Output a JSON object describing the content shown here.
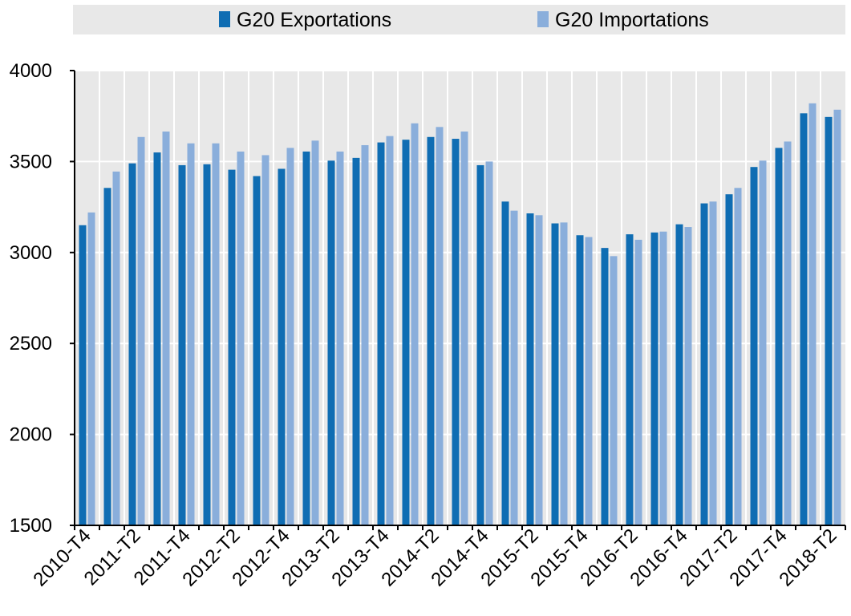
{
  "chart_data": {
    "type": "bar",
    "title": "",
    "xlabel": "",
    "ylabel": "",
    "ylim": [
      1500,
      4000
    ],
    "yticks": [
      1500,
      2000,
      2500,
      3000,
      3500,
      4000
    ],
    "grid": true,
    "legend_position": "top",
    "categories": [
      "2010-T4",
      "2011-T1",
      "2011-T2",
      "2011-T3",
      "2011-T4",
      "2012-T1",
      "2012-T2",
      "2012-T3",
      "2012-T4",
      "2013-T1",
      "2013-T2",
      "2013-T3",
      "2013-T4",
      "2014-T1",
      "2014-T2",
      "2014-T3",
      "2014-T4",
      "2015-T1",
      "2015-T2",
      "2015-T3",
      "2015-T4",
      "2016-T1",
      "2016-T2",
      "2016-T3",
      "2016-T4",
      "2017-T1",
      "2017-T2",
      "2017-T3",
      "2017-T4",
      "2018-T1",
      "2018-T2"
    ],
    "tick_labels": [
      "2010-T4",
      "2011-T2",
      "2011-T4",
      "2012-T2",
      "2012-T4",
      "2013-T2",
      "2013-T4",
      "2014-T2",
      "2014-T4",
      "2015-T2",
      "2015-T4",
      "2016-T2",
      "2016-T4",
      "2017-T2",
      "2017-T4",
      "2018-T2"
    ],
    "series": [
      {
        "name": "G20 Exportations",
        "color": "#0f6db3",
        "values": [
          3150,
          3355,
          3490,
          3550,
          3480,
          3485,
          3455,
          3420,
          3460,
          3555,
          3505,
          3520,
          3605,
          3620,
          3635,
          3625,
          3480,
          3280,
          3215,
          3160,
          3095,
          3025,
          3100,
          3110,
          3155,
          3270,
          3320,
          3470,
          3575,
          3765,
          3745
        ]
      },
      {
        "name": "G20 Importations",
        "color": "#8aaedb",
        "values": [
          3220,
          3445,
          3635,
          3665,
          3600,
          3600,
          3555,
          3535,
          3575,
          3615,
          3555,
          3590,
          3640,
          3710,
          3690,
          3665,
          3500,
          3230,
          3205,
          3165,
          3085,
          2980,
          3070,
          3115,
          3140,
          3280,
          3355,
          3505,
          3610,
          3820,
          3785
        ]
      }
    ]
  }
}
